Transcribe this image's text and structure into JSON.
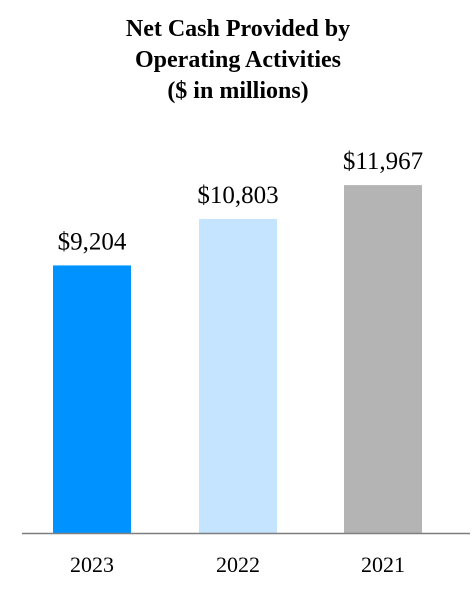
{
  "chart_data": {
    "type": "bar",
    "title_lines": [
      "Net Cash Provided by",
      "Operating Activities",
      "($ in millions)"
    ],
    "categories": [
      "2023",
      "2022",
      "2021"
    ],
    "values": [
      9204,
      10803,
      11967
    ],
    "value_labels": [
      "$9,204",
      "$10,803",
      "$11,967"
    ],
    "colors": [
      "#0093ff",
      "#c5e4ff",
      "#b4b4b4"
    ],
    "axis_color": "#7f7f7f",
    "ylim": [
      0,
      14000
    ],
    "grid": false,
    "legend": "none",
    "xlabel": "",
    "ylabel": ""
  }
}
